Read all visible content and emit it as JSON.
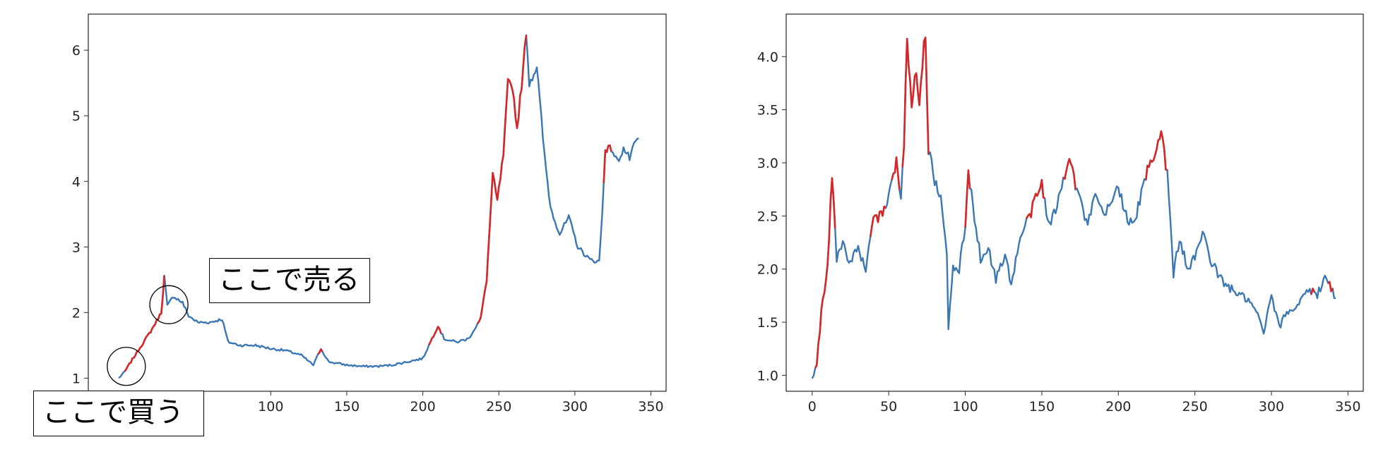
{
  "annotations": {
    "sell_label": "ここで売る",
    "buy_label": "ここで買う"
  },
  "colors": {
    "line": "#3a77b4",
    "highlight": "#d62728"
  },
  "chart_data": [
    {
      "type": "line",
      "xlim": [
        -20,
        360
      ],
      "ylim": [
        0.8,
        6.55
      ],
      "x_ticks": [
        100,
        150,
        200,
        250,
        300,
        350
      ],
      "y_ticks": [
        1,
        2,
        3,
        4,
        5,
        6
      ],
      "grid": false,
      "key_points": [
        [
          0,
          1.0
        ],
        [
          4,
          1.1
        ],
        [
          8,
          1.25
        ],
        [
          15,
          1.5
        ],
        [
          22,
          1.75
        ],
        [
          28,
          2.0
        ],
        [
          30,
          2.55
        ],
        [
          32,
          2.1
        ],
        [
          36,
          2.25
        ],
        [
          42,
          2.15
        ],
        [
          46,
          1.95
        ],
        [
          52,
          1.85
        ],
        [
          60,
          1.85
        ],
        [
          68,
          1.9
        ],
        [
          72,
          1.55
        ],
        [
          80,
          1.5
        ],
        [
          90,
          1.5
        ],
        [
          100,
          1.45
        ],
        [
          110,
          1.42
        ],
        [
          120,
          1.35
        ],
        [
          128,
          1.2
        ],
        [
          133,
          1.45
        ],
        [
          138,
          1.25
        ],
        [
          150,
          1.2
        ],
        [
          160,
          1.18
        ],
        [
          170,
          1.18
        ],
        [
          180,
          1.2
        ],
        [
          190,
          1.25
        ],
        [
          200,
          1.3
        ],
        [
          205,
          1.55
        ],
        [
          210,
          1.8
        ],
        [
          214,
          1.6
        ],
        [
          222,
          1.55
        ],
        [
          230,
          1.6
        ],
        [
          238,
          1.9
        ],
        [
          242,
          2.5
        ],
        [
          246,
          4.1
        ],
        [
          249,
          3.7
        ],
        [
          253,
          4.4
        ],
        [
          256,
          5.5
        ],
        [
          259,
          5.45
        ],
        [
          262,
          4.8
        ],
        [
          266,
          5.7
        ],
        [
          268,
          6.3
        ],
        [
          270,
          5.5
        ],
        [
          275,
          5.75
        ],
        [
          280,
          4.4
        ],
        [
          284,
          3.6
        ],
        [
          290,
          3.2
        ],
        [
          296,
          3.45
        ],
        [
          302,
          3.0
        ],
        [
          310,
          2.8
        ],
        [
          316,
          2.78
        ],
        [
          318,
          3.5
        ],
        [
          320,
          4.5
        ],
        [
          324,
          4.5
        ],
        [
          328,
          4.3
        ],
        [
          332,
          4.5
        ],
        [
          336,
          4.35
        ],
        [
          340,
          4.6
        ],
        [
          342,
          4.65
        ]
      ],
      "highlight_ranges": [
        [
          4,
          30
        ],
        [
          131,
          134
        ],
        [
          204,
          212
        ],
        [
          236,
          268
        ],
        [
          319,
          324
        ]
      ],
      "annotations_ref": [
        "buy_label",
        "sell_label"
      ]
    },
    {
      "type": "line",
      "xlim": [
        -17,
        360
      ],
      "ylim": [
        0.85,
        4.4
      ],
      "x_ticks": [
        0,
        50,
        100,
        150,
        200,
        250,
        300,
        350
      ],
      "y_ticks": [
        1.0,
        1.5,
        2.0,
        2.5,
        3.0,
        3.5,
        4.0
      ],
      "grid": false,
      "key_points": [
        [
          0,
          0.98
        ],
        [
          3,
          1.1
        ],
        [
          6,
          1.6
        ],
        [
          10,
          2.0
        ],
        [
          13,
          2.9
        ],
        [
          16,
          2.1
        ],
        [
          20,
          2.25
        ],
        [
          25,
          2.05
        ],
        [
          30,
          2.2
        ],
        [
          35,
          2.0
        ],
        [
          40,
          2.45
        ],
        [
          45,
          2.5
        ],
        [
          50,
          2.7
        ],
        [
          55,
          3.0
        ],
        [
          58,
          2.7
        ],
        [
          60,
          3.2
        ],
        [
          62,
          4.15
        ],
        [
          65,
          3.6
        ],
        [
          68,
          3.9
        ],
        [
          70,
          3.6
        ],
        [
          74,
          4.25
        ],
        [
          76,
          3.1
        ],
        [
          80,
          2.85
        ],
        [
          85,
          2.6
        ],
        [
          88,
          2.1
        ],
        [
          89,
          1.45
        ],
        [
          92,
          2.0
        ],
        [
          96,
          2.0
        ],
        [
          100,
          2.4
        ],
        [
          102,
          2.9
        ],
        [
          106,
          2.5
        ],
        [
          110,
          2.1
        ],
        [
          115,
          2.2
        ],
        [
          120,
          1.9
        ],
        [
          126,
          2.15
        ],
        [
          130,
          1.85
        ],
        [
          136,
          2.3
        ],
        [
          142,
          2.5
        ],
        [
          147,
          2.7
        ],
        [
          150,
          2.8
        ],
        [
          155,
          2.4
        ],
        [
          160,
          2.6
        ],
        [
          165,
          2.9
        ],
        [
          168,
          3.1
        ],
        [
          172,
          2.8
        ],
        [
          176,
          2.6
        ],
        [
          180,
          2.4
        ],
        [
          185,
          2.7
        ],
        [
          190,
          2.5
        ],
        [
          195,
          2.6
        ],
        [
          200,
          2.8
        ],
        [
          205,
          2.5
        ],
        [
          210,
          2.4
        ],
        [
          215,
          2.7
        ],
        [
          220,
          3.0
        ],
        [
          224,
          3.1
        ],
        [
          228,
          3.3
        ],
        [
          232,
          2.9
        ],
        [
          236,
          1.95
        ],
        [
          240,
          2.3
        ],
        [
          245,
          2.0
        ],
        [
          250,
          2.1
        ],
        [
          255,
          2.35
        ],
        [
          260,
          2.1
        ],
        [
          265,
          1.95
        ],
        [
          270,
          1.85
        ],
        [
          275,
          1.8
        ],
        [
          280,
          1.75
        ],
        [
          285,
          1.7
        ],
        [
          290,
          1.6
        ],
        [
          295,
          1.4
        ],
        [
          300,
          1.75
        ],
        [
          305,
          1.45
        ],
        [
          310,
          1.6
        ],
        [
          315,
          1.62
        ],
        [
          320,
          1.75
        ],
        [
          325,
          1.8
        ],
        [
          330,
          1.75
        ],
        [
          335,
          1.95
        ],
        [
          338,
          1.85
        ],
        [
          342,
          1.72
        ]
      ],
      "highlight_ranges": [
        [
          2,
          15
        ],
        [
          38,
          48
        ],
        [
          52,
          57
        ],
        [
          59,
          76
        ],
        [
          100,
          103
        ],
        [
          140,
          152
        ],
        [
          164,
          172
        ],
        [
          218,
          232
        ],
        [
          326,
          328
        ],
        [
          337,
          340
        ]
      ]
    }
  ]
}
